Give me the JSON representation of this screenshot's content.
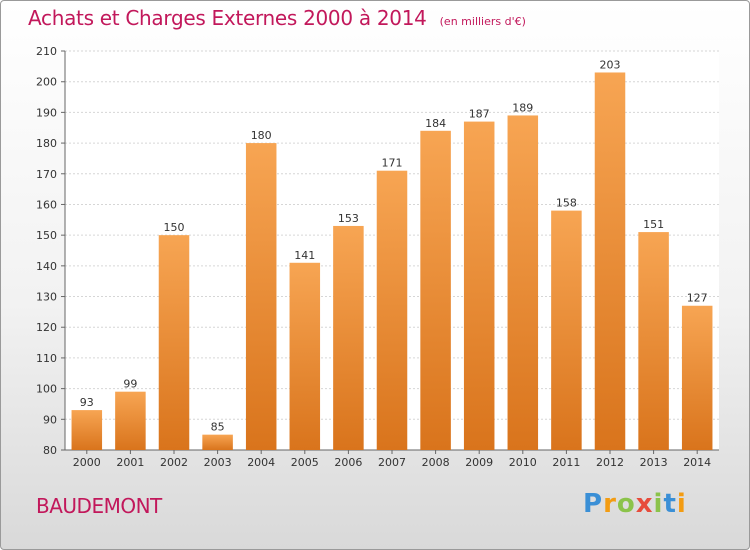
{
  "title": "Achats et Charges Externes 2000 à 2014",
  "subtitle": "(en milliers d'€)",
  "commune": "BAUDEMONT",
  "logo": {
    "letters": [
      "P",
      "r",
      "o",
      "x",
      "i",
      "t",
      "i"
    ],
    "colors": [
      "#3a8fd6",
      "#f39c12",
      "#8bc34a",
      "#e74c3c",
      "#8bc34a",
      "#3a8fd6",
      "#f39c12"
    ]
  },
  "chart_data": {
    "type": "bar",
    "categories": [
      "2000",
      "2001",
      "2002",
      "2003",
      "2004",
      "2005",
      "2006",
      "2007",
      "2008",
      "2009",
      "2010",
      "2011",
      "2012",
      "2013",
      "2014"
    ],
    "values": [
      93,
      99,
      150,
      85,
      180,
      141,
      153,
      171,
      184,
      187,
      189,
      158,
      203,
      151,
      127
    ],
    "ylim": [
      80,
      210
    ],
    "yticks": [
      80,
      90,
      100,
      110,
      120,
      130,
      140,
      150,
      160,
      170,
      180,
      190,
      200,
      210
    ],
    "grid": true,
    "bar_color": "#e8862e"
  }
}
